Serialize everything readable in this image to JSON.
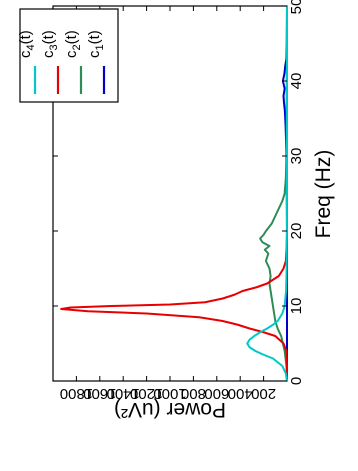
{
  "chart_data": {
    "type": "line",
    "title": "",
    "xlabel": "Freq (Hz)",
    "ylabel": "Power (uV²)",
    "xlim": [
      0,
      50
    ],
    "ylim": [
      0,
      2000
    ],
    "x_ticks": [
      0,
      10,
      20,
      30,
      40,
      50
    ],
    "y_ticks": [
      200,
      400,
      600,
      800,
      1000,
      1200,
      1400,
      1600,
      1800
    ],
    "grid": false,
    "legend_position": "top-right",
    "series": [
      {
        "name": "c1(t)",
        "color": "#0000cc",
        "x": [
          0,
          5,
          10,
          15,
          20,
          25,
          28,
          30,
          32,
          34,
          36,
          37,
          38,
          39,
          40,
          41,
          42,
          43,
          45,
          50
        ],
        "y": [
          0,
          0,
          0,
          0,
          0,
          2,
          3,
          5,
          8,
          12,
          18,
          25,
          30,
          20,
          35,
          22,
          15,
          5,
          2,
          0
        ]
      },
      {
        "name": "c2(t)",
        "color": "#2e8b57",
        "x": [
          0,
          2,
          4,
          6,
          7,
          8,
          9,
          10,
          11,
          12,
          13,
          14,
          15,
          16,
          17,
          17.5,
          18,
          18.5,
          19,
          19.5,
          20,
          21,
          22,
          23,
          24,
          25,
          27,
          30,
          35,
          40,
          45,
          50
        ],
        "y": [
          0,
          5,
          20,
          50,
          80,
          100,
          110,
          120,
          130,
          140,
          150,
          140,
          150,
          180,
          160,
          190,
          150,
          210,
          230,
          200,
          180,
          130,
          100,
          70,
          40,
          20,
          10,
          5,
          3,
          2,
          1,
          0
        ],
        "label": "c2(t)"
      },
      {
        "name": "c3(t)",
        "color": "#e80000",
        "x": [
          0,
          2,
          4,
          5,
          6,
          6.5,
          7,
          7.5,
          8,
          8.5,
          9,
          9.3,
          9.6,
          9.8,
          10,
          10.2,
          10.5,
          11,
          11.5,
          12,
          12.5,
          13,
          14,
          15,
          16,
          18,
          20,
          25,
          50
        ],
        "y": [
          0,
          0,
          5,
          30,
          100,
          200,
          320,
          420,
          550,
          750,
          1200,
          1700,
          1930,
          1850,
          1500,
          1000,
          700,
          550,
          450,
          380,
          260,
          170,
          70,
          30,
          10,
          3,
          0,
          0,
          0
        ],
        "label": "c3(t)"
      },
      {
        "name": "c4(t)",
        "color": "#00c8c8",
        "x": [
          0,
          1,
          2,
          3,
          3.5,
          4,
          4.5,
          5,
          5.5,
          6,
          6.5,
          7,
          7.5,
          8,
          9,
          10,
          12,
          15,
          20,
          30,
          50
        ],
        "y": [
          0,
          10,
          40,
          120,
          200,
          270,
          320,
          340,
          320,
          280,
          230,
          170,
          120,
          80,
          40,
          20,
          8,
          3,
          1,
          0,
          0
        ],
        "label": "c4(t)"
      }
    ]
  }
}
